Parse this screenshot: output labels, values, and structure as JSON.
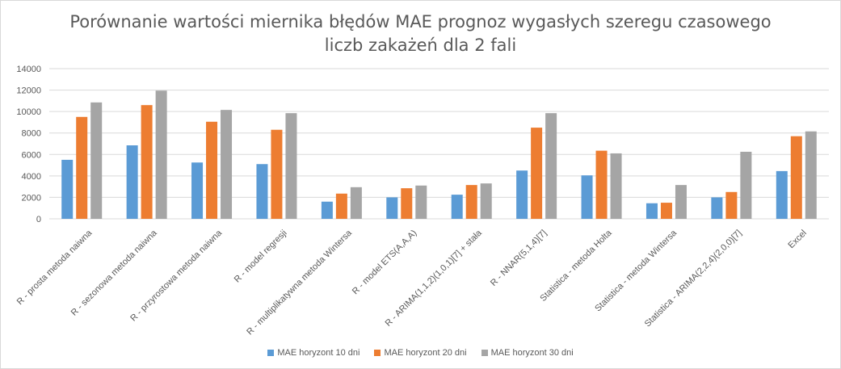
{
  "chart_data": {
    "type": "bar",
    "title_line1": "Porównanie wartości miernika błędów MAE prognoz wygasłych szeregu  czasowego",
    "title_line2": "liczb zakażeń dla 2 fali",
    "categories": [
      "R - prosta metoda naiwna",
      "R - sezonowa metoda naiwna",
      "R - przyrostowa metoda naiwna",
      "R - model regresji",
      "R - multiplikatywna metoda Wintersa",
      "R - model ETS(A,A,A)",
      "R - ARIMA(1,1,2)(1,0,1)[7] + stała",
      "R - NNAR(5,1,4)[7]",
      "Statistica - metoda Holta",
      "Statistica - metoda Wintersa",
      "Statistica - ARIMA(2,2,4)(2,0,0)[7]",
      "Excel"
    ],
    "series": [
      {
        "name": "MAE horyzont 10 dni",
        "color": "#5b9bd5",
        "values": [
          5500,
          6850,
          5250,
          5100,
          1600,
          2000,
          2250,
          4500,
          4050,
          1450,
          2000,
          4450
        ]
      },
      {
        "name": "MAE horyzont 20 dni",
        "color": "#ed7d31",
        "values": [
          9500,
          10600,
          9050,
          8300,
          2350,
          2850,
          3150,
          8500,
          6350,
          1500,
          2500,
          7700
        ]
      },
      {
        "name": "MAE horyzont 30 dni",
        "color": "#a5a5a5",
        "values": [
          10850,
          11950,
          10150,
          9850,
          2950,
          3100,
          3300,
          9850,
          6100,
          3150,
          6250,
          8150
        ]
      }
    ],
    "yticks": [
      "0",
      "2000",
      "4000",
      "6000",
      "8000",
      "10000",
      "12000",
      "14000"
    ],
    "ylim": [
      0,
      14000
    ],
    "grid": true,
    "legend_position": "bottom"
  }
}
